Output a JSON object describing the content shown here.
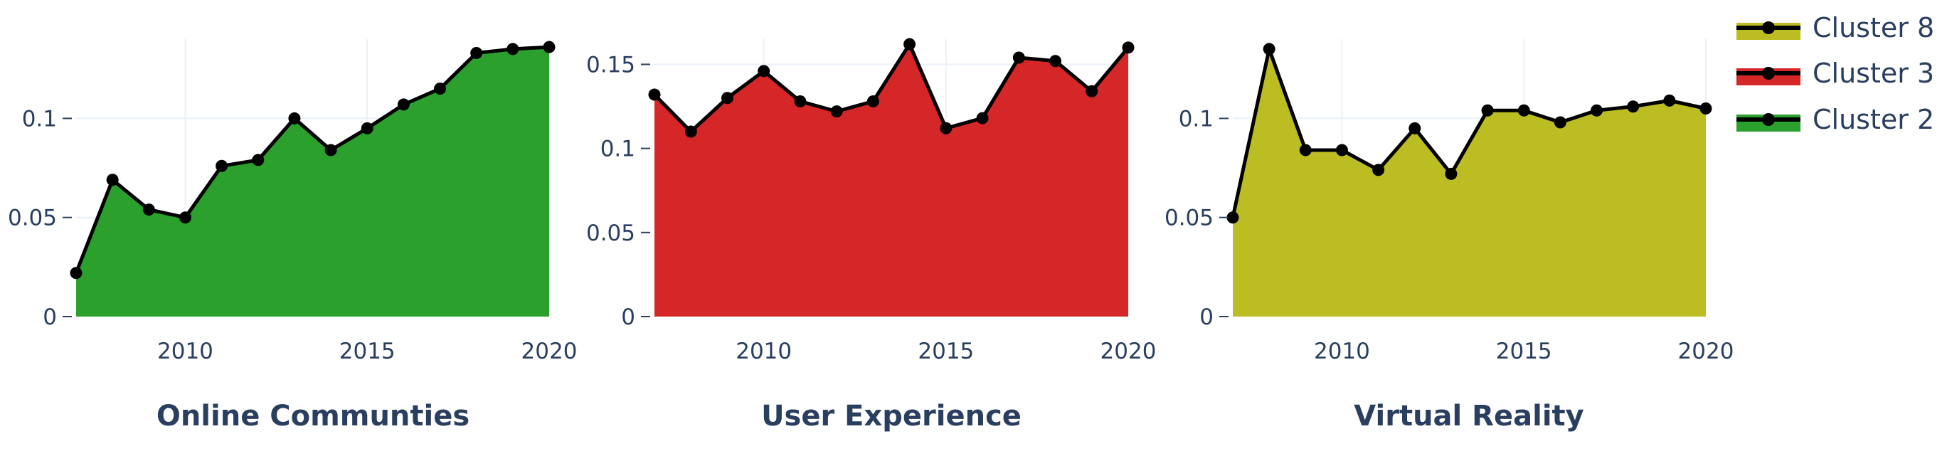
{
  "legend": {
    "items": [
      {
        "label": "Cluster 8",
        "color": "#bcbd22"
      },
      {
        "label": "Cluster 3",
        "color": "#d62728"
      },
      {
        "label": "Cluster 2",
        "color": "#2ca02c"
      }
    ]
  },
  "chart_data": [
    {
      "type": "area",
      "title": "Online Communties",
      "series": [
        {
          "name": "Cluster 2",
          "color": "#2ca02c",
          "values": [
            0.022,
            0.069,
            0.054,
            0.05,
            0.076,
            0.079,
            0.1,
            0.084,
            0.095,
            0.107,
            0.115,
            0.133,
            0.135,
            0.136
          ]
        }
      ],
      "x": [
        2007,
        2008,
        2009,
        2010,
        2011,
        2012,
        2013,
        2014,
        2015,
        2016,
        2017,
        2018,
        2019,
        2020
      ],
      "xlim": [
        2007,
        2020
      ],
      "ylim": [
        0,
        0.14
      ],
      "xticks": [
        "2010",
        "2015",
        "2020"
      ],
      "yticks": [
        "0",
        "0.05",
        "0.1"
      ],
      "grid": true
    },
    {
      "type": "area",
      "title": "User Experience",
      "series": [
        {
          "name": "Cluster 3",
          "color": "#d62728",
          "values": [
            0.132,
            0.11,
            0.13,
            0.146,
            0.128,
            0.122,
            0.128,
            0.162,
            0.112,
            0.118,
            0.154,
            0.152,
            0.134,
            0.16
          ]
        }
      ],
      "x": [
        2007,
        2008,
        2009,
        2010,
        2011,
        2012,
        2013,
        2014,
        2015,
        2016,
        2017,
        2018,
        2019,
        2020
      ],
      "xlim": [
        2007,
        2020
      ],
      "ylim": [
        0,
        0.165
      ],
      "xticks": [
        "2010",
        "2015",
        "2020"
      ],
      "yticks": [
        "0",
        "0.05",
        "0.1",
        "0.15"
      ],
      "grid": true
    },
    {
      "type": "area",
      "title": "Virtual Reality",
      "series": [
        {
          "name": "Cluster 8",
          "color": "#bcbd22",
          "values": [
            0.05,
            0.135,
            0.084,
            0.084,
            0.074,
            0.095,
            0.072,
            0.104,
            0.104,
            0.098,
            0.104,
            0.106,
            0.109,
            0.105
          ]
        }
      ],
      "x": [
        2007,
        2008,
        2009,
        2010,
        2011,
        2012,
        2013,
        2014,
        2015,
        2016,
        2017,
        2018,
        2019,
        2020
      ],
      "xlim": [
        2007,
        2020
      ],
      "ylim": [
        0,
        0.14
      ],
      "xticks": [
        "2010",
        "2015",
        "2020"
      ],
      "yticks": [
        "0",
        "0.05",
        "0.1"
      ],
      "grid": true
    }
  ]
}
